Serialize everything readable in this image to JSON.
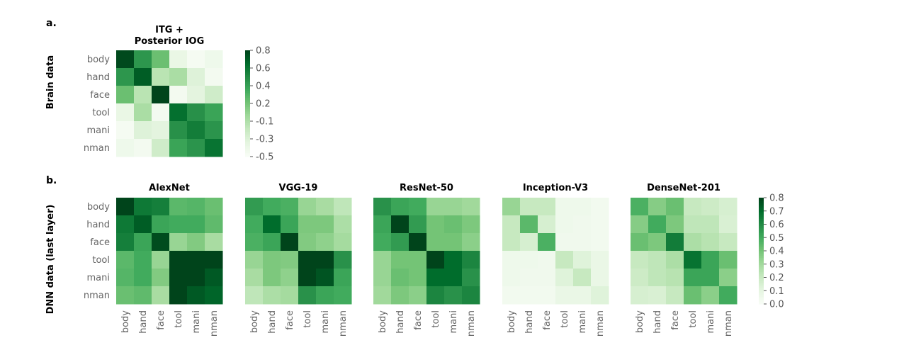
{
  "panel_labels": {
    "a": "a.",
    "b": "b."
  },
  "row_labels": {
    "brain": "Brain data",
    "dnn": "DNN data (last layer)"
  },
  "colors": {
    "low": "#f7fcf5",
    "high": "#00441b",
    "tick_text": "#666666"
  },
  "chart_data": [
    {
      "type": "heatmap",
      "title": [
        "ITG +",
        "Posterior IOG"
      ],
      "rows": [
        "body",
        "hand",
        "face",
        "tool",
        "mani",
        "nman"
      ],
      "cols": [],
      "colorbar": {
        "ticks": [
          "0.8",
          "0.6",
          "0.4",
          "0.2",
          "-0.1",
          "-0.3",
          "-0.5"
        ],
        "range": [
          -0.5,
          0.8
        ]
      },
      "values": [
        [
          0.78,
          0.42,
          0.18,
          -0.38,
          -0.48,
          -0.42
        ],
        [
          0.42,
          0.7,
          -0.12,
          -0.05,
          -0.3,
          -0.46
        ],
        [
          0.18,
          -0.12,
          0.95,
          -0.46,
          -0.33,
          -0.22
        ],
        [
          -0.38,
          -0.05,
          -0.46,
          0.62,
          0.45,
          0.35
        ],
        [
          -0.48,
          -0.3,
          -0.33,
          0.45,
          0.55,
          0.43
        ],
        [
          -0.42,
          -0.46,
          -0.22,
          0.35,
          0.43,
          0.6
        ]
      ]
    },
    {
      "type": "heatmap",
      "title": [
        "AlexNet"
      ],
      "rows": [
        "body",
        "hand",
        "face",
        "tool",
        "mani",
        "nman"
      ],
      "cols": [
        "body",
        "hand",
        "face",
        "tool",
        "mani",
        "nman"
      ],
      "colorbar": null,
      "values": [
        [
          0.8,
          0.66,
          0.64,
          0.45,
          0.46,
          0.42
        ],
        [
          0.66,
          0.74,
          0.52,
          0.5,
          0.5,
          0.44
        ],
        [
          0.64,
          0.52,
          0.78,
          0.32,
          0.37,
          0.28
        ],
        [
          0.45,
          0.5,
          0.32,
          0.96,
          0.9,
          0.8
        ],
        [
          0.46,
          0.5,
          0.37,
          0.9,
          0.92,
          0.75
        ],
        [
          0.42,
          0.44,
          0.28,
          0.8,
          0.75,
          0.72
        ]
      ]
    },
    {
      "type": "heatmap",
      "title": [
        "VGG-19"
      ],
      "rows": [],
      "cols": [
        "body",
        "hand",
        "face",
        "tool",
        "mani",
        "nman"
      ],
      "colorbar": null,
      "values": [
        [
          0.55,
          0.5,
          0.48,
          0.32,
          0.28,
          0.22
        ],
        [
          0.5,
          0.7,
          0.52,
          0.38,
          0.38,
          0.27
        ],
        [
          0.48,
          0.52,
          0.84,
          0.37,
          0.34,
          0.29
        ],
        [
          0.32,
          0.38,
          0.37,
          0.95,
          0.8,
          0.58
        ],
        [
          0.28,
          0.38,
          0.34,
          0.8,
          0.76,
          0.52
        ],
        [
          0.22,
          0.27,
          0.29,
          0.58,
          0.52,
          0.5
        ]
      ]
    },
    {
      "type": "heatmap",
      "title": [
        "ResNet-50"
      ],
      "rows": [],
      "cols": [
        "body",
        "hand",
        "face",
        "tool",
        "mani",
        "nman"
      ],
      "colorbar": null,
      "values": [
        [
          0.58,
          0.52,
          0.5,
          0.32,
          0.32,
          0.3
        ],
        [
          0.52,
          0.84,
          0.55,
          0.4,
          0.42,
          0.38
        ],
        [
          0.5,
          0.55,
          0.92,
          0.4,
          0.4,
          0.35
        ],
        [
          0.32,
          0.4,
          0.4,
          0.82,
          0.7,
          0.62
        ],
        [
          0.32,
          0.42,
          0.4,
          0.7,
          0.7,
          0.58
        ],
        [
          0.3,
          0.38,
          0.35,
          0.62,
          0.58,
          0.62
        ]
      ]
    },
    {
      "type": "heatmap",
      "title": [
        "Inception-V3"
      ],
      "rows": [],
      "cols": [
        "body",
        "hand",
        "face",
        "tool",
        "mani",
        "nman"
      ],
      "colorbar": null,
      "values": [
        [
          0.32,
          0.2,
          0.2,
          0.05,
          0.05,
          0.03
        ],
        [
          0.2,
          0.45,
          0.15,
          0.05,
          0.04,
          0.03
        ],
        [
          0.2,
          0.15,
          0.48,
          0.04,
          0.04,
          0.03
        ],
        [
          0.05,
          0.05,
          0.04,
          0.2,
          0.12,
          0.07
        ],
        [
          0.05,
          0.04,
          0.04,
          0.12,
          0.2,
          0.07
        ],
        [
          0.03,
          0.03,
          0.03,
          0.07,
          0.07,
          0.12
        ]
      ]
    },
    {
      "type": "heatmap",
      "title": [
        "DenseNet-201"
      ],
      "rows": [],
      "cols": [
        "body",
        "hand",
        "face",
        "tool",
        "mani",
        "nman"
      ],
      "colorbar": {
        "ticks": [
          "0.8",
          "0.7",
          "0.6",
          "0.5",
          "0.4",
          "0.3",
          "0.2",
          "0.1",
          "0.0"
        ],
        "range": [
          0.0,
          0.8
        ]
      },
      "values": [
        [
          0.48,
          0.36,
          0.42,
          0.2,
          0.18,
          0.15
        ],
        [
          0.36,
          0.5,
          0.38,
          0.22,
          0.22,
          0.14
        ],
        [
          0.42,
          0.38,
          0.65,
          0.27,
          0.24,
          0.2
        ],
        [
          0.2,
          0.22,
          0.27,
          0.68,
          0.52,
          0.42
        ],
        [
          0.18,
          0.22,
          0.24,
          0.52,
          0.52,
          0.35
        ],
        [
          0.15,
          0.14,
          0.2,
          0.42,
          0.35,
          0.5
        ]
      ]
    }
  ]
}
